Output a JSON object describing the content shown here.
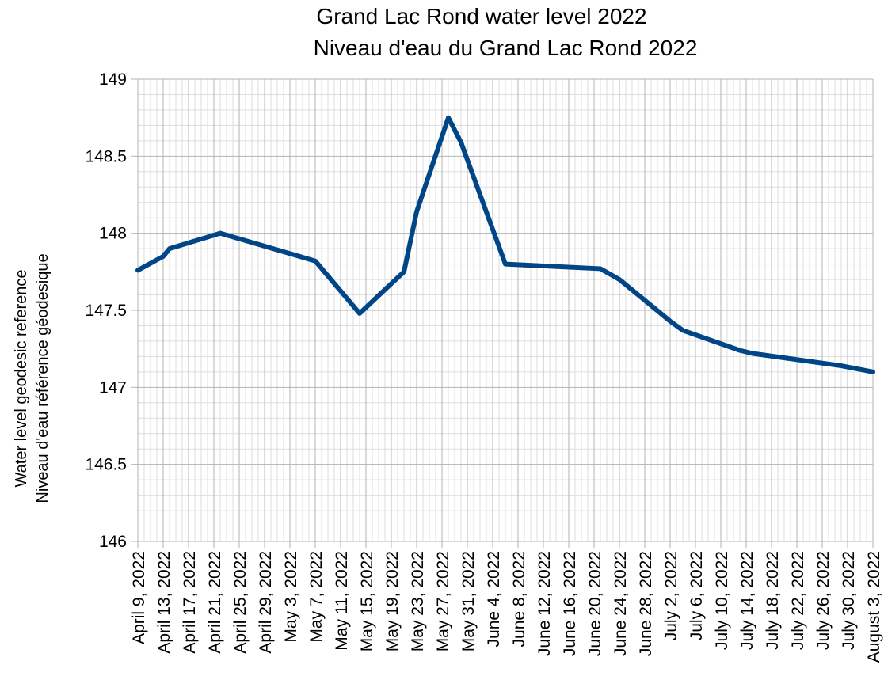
{
  "chart_data": {
    "type": "line",
    "title": "Grand Lac Rond water level 2022",
    "subtitle": "Niveau d'eau du Grand Lac Rond 2022",
    "y_label": "Water level geodesic reference",
    "y_label_2": "Niveau d'eau référence géodesique",
    "x": [
      "2022-04-09",
      "2022-04-13",
      "2022-04-14",
      "2022-04-22",
      "2022-05-07",
      "2022-05-14",
      "2022-05-21",
      "2022-05-23",
      "2022-05-28",
      "2022-05-29",
      "2022-05-30",
      "2022-06-06",
      "2022-06-21",
      "2022-06-24",
      "2022-07-02",
      "2022-07-04",
      "2022-07-13",
      "2022-07-15",
      "2022-07-29",
      "2022-08-03"
    ],
    "series": [
      {
        "name": "Water level",
        "color": "#004586",
        "values": [
          147.76,
          147.85,
          147.9,
          148.0,
          147.82,
          147.48,
          147.75,
          148.14,
          148.75,
          148.67,
          148.59,
          147.8,
          147.77,
          147.7,
          147.43,
          147.37,
          147.24,
          147.22,
          147.14,
          147.1
        ]
      }
    ],
    "xlim": [
      "2022-04-09",
      "2022-08-03"
    ],
    "xticks": [
      {
        "value": "2022-04-09",
        "label": "April 9, 2022"
      },
      {
        "value": "2022-04-13",
        "label": "April 13, 2022"
      },
      {
        "value": "2022-04-17",
        "label": "April 17, 2022"
      },
      {
        "value": "2022-04-21",
        "label": "April 21, 2022"
      },
      {
        "value": "2022-04-25",
        "label": "April 25, 2022"
      },
      {
        "value": "2022-04-29",
        "label": "April 29, 2022"
      },
      {
        "value": "2022-05-03",
        "label": "May 3, 2022"
      },
      {
        "value": "2022-05-07",
        "label": "May 7, 2022"
      },
      {
        "value": "2022-05-11",
        "label": "May 11, 2022"
      },
      {
        "value": "2022-05-15",
        "label": "May 15, 2022"
      },
      {
        "value": "2022-05-19",
        "label": "May 19, 2022"
      },
      {
        "value": "2022-05-23",
        "label": "May 23, 2022"
      },
      {
        "value": "2022-05-27",
        "label": "May 27, 2022"
      },
      {
        "value": "2022-05-31",
        "label": "May 31, 2022"
      },
      {
        "value": "2022-06-04",
        "label": "June 4, 2022"
      },
      {
        "value": "2022-06-08",
        "label": "June 8, 2022"
      },
      {
        "value": "2022-06-12",
        "label": "June 12, 2022"
      },
      {
        "value": "2022-06-16",
        "label": "June 16, 2022"
      },
      {
        "value": "2022-06-20",
        "label": "June 20, 2022"
      },
      {
        "value": "2022-06-24",
        "label": "June 24, 2022"
      },
      {
        "value": "2022-06-28",
        "label": "June 28, 2022"
      },
      {
        "value": "2022-07-02",
        "label": "July 2, 2022"
      },
      {
        "value": "2022-07-06",
        "label": "July 6, 2022"
      },
      {
        "value": "2022-07-10",
        "label": "July 10, 2022"
      },
      {
        "value": "2022-07-14",
        "label": "July 14, 2022"
      },
      {
        "value": "2022-07-18",
        "label": "July 18, 2022"
      },
      {
        "value": "2022-07-22",
        "label": "July 22, 2022"
      },
      {
        "value": "2022-07-26",
        "label": "July 26, 2022"
      },
      {
        "value": "2022-07-30",
        "label": "July 30, 2022"
      },
      {
        "value": "2022-08-03",
        "label": "August 3, 2022"
      }
    ],
    "ylim": [
      146,
      149
    ],
    "yticks": [
      146,
      {
        "value": 146.5,
        "label": "146.5"
      },
      147,
      {
        "value": 147.5,
        "label": "147.5"
      },
      148,
      {
        "value": 148.5,
        "label": "148.5"
      },
      149
    ],
    "grid": true,
    "minor_grid": true
  }
}
